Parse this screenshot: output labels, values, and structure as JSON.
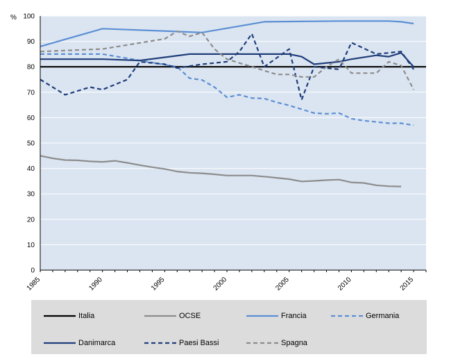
{
  "chart_data": {
    "type": "line",
    "title": "",
    "xlabel": "",
    "ylabel": "%",
    "ylim": [
      0,
      100
    ],
    "xlim": [
      1985,
      2016
    ],
    "yticks": [
      0,
      10,
      20,
      30,
      40,
      50,
      60,
      70,
      80,
      90,
      100
    ],
    "xticks": [
      1985,
      1990,
      1995,
      2000,
      2005,
      2010,
      2015
    ],
    "grid": true,
    "legend": "bottom",
    "series": [
      {
        "name": "Italia",
        "color": "#000000",
        "dash": "solid",
        "x": [
          1985,
          2016
        ],
        "y": [
          80,
          80
        ]
      },
      {
        "name": "OCSE",
        "color": "#8c8c8c",
        "dash": "solid",
        "x": [
          1985,
          1986,
          1987,
          1988,
          1989,
          1990,
          1991,
          1992,
          1993,
          1994,
          1995,
          1996,
          1997,
          1998,
          1999,
          2000,
          2001,
          2002,
          2003,
          2004,
          2005,
          2006,
          2007,
          2008,
          2009,
          2010,
          2011,
          2012,
          2013,
          2014
        ],
        "y": [
          45,
          44,
          43.3,
          43.2,
          42.8,
          42.6,
          43,
          42.2,
          41.3,
          40.5,
          39.8,
          38.8,
          38.3,
          38.1,
          37.7,
          37.2,
          37.2,
          37.2,
          36.8,
          36.3,
          35.8,
          34.9,
          35.1,
          35.4,
          35.6,
          34.5,
          34.3,
          33.4,
          33.0,
          32.9
        ]
      },
      {
        "name": "Francia",
        "color": "#5b8fd4",
        "dash": "solid",
        "x": [
          1985,
          1990,
          1998,
          2003,
          2009,
          2013,
          2014,
          2015
        ],
        "y": [
          88,
          95,
          93.5,
          97.7,
          98,
          98,
          97.7,
          97
        ]
      },
      {
        "name": "Germania",
        "color": "#5b8fd4",
        "dash": "dashed",
        "x": [
          1985,
          1990,
          1993,
          1996,
          1997,
          1998,
          1999,
          2000,
          2001,
          2002,
          2003,
          2004,
          2005,
          2006,
          2007,
          2008,
          2009,
          2010,
          2011,
          2012,
          2013,
          2014,
          2015
        ],
        "y": [
          85,
          85,
          82.5,
          80,
          75.5,
          74.8,
          72,
          68,
          69,
          67.7,
          67.5,
          66,
          64.8,
          63.3,
          61.8,
          61.5,
          61.8,
          59.6,
          58.8,
          58.3,
          57.8,
          57.8,
          57
        ]
      },
      {
        "name": "Danimarca",
        "color": "#1f3d7a",
        "dash": "solid",
        "x": [
          1985,
          1990,
          1993,
          1997,
          2000,
          2003,
          2005,
          2006,
          2007,
          2009,
          2010,
          2012,
          2013,
          2014,
          2015
        ],
        "y": [
          83,
          83,
          82.5,
          85,
          85,
          85,
          85,
          84,
          81,
          82,
          83,
          84.5,
          84,
          85.5,
          80
        ]
      },
      {
        "name": "Paesi Bassi",
        "color": "#1f3d7a",
        "dash": "dashed",
        "x": [
          1985,
          1987,
          1989,
          1990,
          1991,
          1992,
          1993,
          1995,
          1996,
          1998,
          2000,
          2001,
          2002,
          2003,
          2005,
          2006,
          2007,
          2009,
          2010,
          2012,
          2013,
          2014,
          2015
        ],
        "y": [
          75,
          69,
          72,
          71,
          73,
          75,
          82,
          81,
          79.5,
          81,
          82,
          86,
          93,
          80,
          87,
          67,
          80,
          79,
          89.5,
          85,
          85.5,
          86,
          79
        ]
      },
      {
        "name": "Spagna",
        "color": "#8c8c8c",
        "dash": "dashed",
        "x": [
          1985,
          1990,
          1995,
          1996,
          1997,
          1998,
          1999,
          2000,
          2001,
          2002,
          2003,
          2004,
          2005,
          2006,
          2007,
          2008,
          2009,
          2010,
          2011,
          2012,
          2013,
          2014,
          2015
        ],
        "y": [
          86,
          87,
          91,
          94,
          92,
          93.5,
          87,
          83,
          81.5,
          80,
          78.5,
          77,
          77,
          76,
          76,
          80,
          83,
          77.5,
          77.5,
          77.5,
          82,
          80.5,
          71
        ]
      }
    ]
  },
  "legend": {
    "items": [
      {
        "label": "Italia"
      },
      {
        "label": "OCSE"
      },
      {
        "label": "Francia"
      },
      {
        "label": "Germania"
      },
      {
        "label": "Danimarca"
      },
      {
        "label": "Paesi Bassi"
      },
      {
        "label": "Spagna"
      }
    ]
  }
}
